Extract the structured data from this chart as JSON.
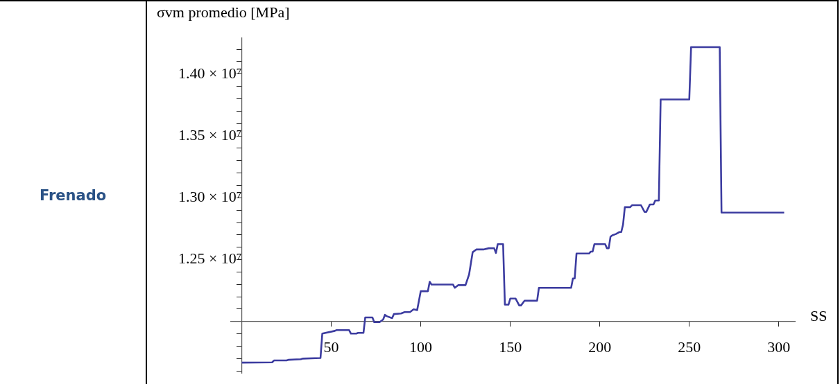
{
  "chart_data": {
    "type": "line",
    "ylabel": "σvm promedio [MPa]",
    "xlabel": "SS",
    "annotations": [
      "Frenado"
    ],
    "xlim": [
      -6,
      309
    ],
    "ylim": [
      11580000,
      14290000
    ],
    "xticks": [
      50,
      100,
      150,
      200,
      250,
      300
    ],
    "yticks": [
      {
        "value": 11600000,
        "label": null
      },
      {
        "value": 11700000,
        "label": null
      },
      {
        "value": 11800000,
        "label": null
      },
      {
        "value": 11900000,
        "label": null
      },
      {
        "value": 12000000,
        "label": null
      },
      {
        "value": 12100000,
        "label": null
      },
      {
        "value": 12200000,
        "label": null
      },
      {
        "value": 12300000,
        "label": null
      },
      {
        "value": 12400000,
        "label": null
      },
      {
        "value": 12500000,
        "label": "1.25 × 10⁷"
      },
      {
        "value": 12600000,
        "label": null
      },
      {
        "value": 12700000,
        "label": null
      },
      {
        "value": 12800000,
        "label": null
      },
      {
        "value": 12900000,
        "label": null
      },
      {
        "value": 13000000,
        "label": "1.30 × 10⁷"
      },
      {
        "value": 13100000,
        "label": null
      },
      {
        "value": 13200000,
        "label": null
      },
      {
        "value": 13300000,
        "label": null
      },
      {
        "value": 13400000,
        "label": null
      },
      {
        "value": 13500000,
        "label": "1.35 × 10⁷"
      },
      {
        "value": 13600000,
        "label": null
      },
      {
        "value": 13700000,
        "label": null
      },
      {
        "value": 13800000,
        "label": null
      },
      {
        "value": 13900000,
        "label": null
      },
      {
        "value": 14000000,
        "label": "1.40 × 10⁷"
      },
      {
        "value": 14100000,
        "label": null
      },
      {
        "value": 14200000,
        "label": null
      }
    ],
    "grid": false,
    "legend": false,
    "marker": "none",
    "line_style": "solid",
    "series": [
      {
        "color": "#3c3ca0",
        "x": [
          0,
          17,
          18,
          25,
          26,
          33,
          34,
          44,
          45,
          52,
          53,
          60,
          61,
          64,
          65,
          68,
          69,
          73,
          74,
          77,
          79,
          80,
          81,
          84,
          85,
          89,
          91,
          94,
          96,
          98,
          100,
          104,
          105,
          106,
          118,
          119,
          121,
          125,
          127,
          129,
          131,
          135,
          138,
          141,
          142,
          143,
          146,
          147,
          149,
          150,
          153,
          155,
          156,
          158,
          165,
          166,
          184,
          185,
          186,
          187,
          194,
          195,
          196,
          197,
          203,
          204,
          205,
          206,
          207,
          209,
          211,
          212,
          213,
          214,
          217,
          218,
          223,
          225,
          226,
          228,
          229,
          230,
          231,
          233,
          234,
          250,
          251,
          267,
          268,
          303
        ],
        "values": [
          11668000,
          11670000,
          11685000,
          11685000,
          11690000,
          11695000,
          11700000,
          11705000,
          11902000,
          11924000,
          11930000,
          11930000,
          11902000,
          11902000,
          11908000,
          11908000,
          12033000,
          12033000,
          11995000,
          11995000,
          12016000,
          12054000,
          12043000,
          12027000,
          12060000,
          12065000,
          12076000,
          12076000,
          12098000,
          12092000,
          12245000,
          12245000,
          12321000,
          12299000,
          12299000,
          12272000,
          12294000,
          12294000,
          12380000,
          12560000,
          12582000,
          12582000,
          12592000,
          12592000,
          12554000,
          12625000,
          12625000,
          12136000,
          12136000,
          12185000,
          12185000,
          12130000,
          12130000,
          12168000,
          12168000,
          12272000,
          12272000,
          12348000,
          12348000,
          12549000,
          12549000,
          12565000,
          12565000,
          12625000,
          12625000,
          12592000,
          12592000,
          12685000,
          12696000,
          12707000,
          12723000,
          12723000,
          12783000,
          12924000,
          12924000,
          12940000,
          12940000,
          12886000,
          12886000,
          12946000,
          12946000,
          12946000,
          12978000,
          12978000,
          13794000,
          13794000,
          14217000,
          14217000,
          12880000,
          12880000
        ]
      }
    ]
  }
}
